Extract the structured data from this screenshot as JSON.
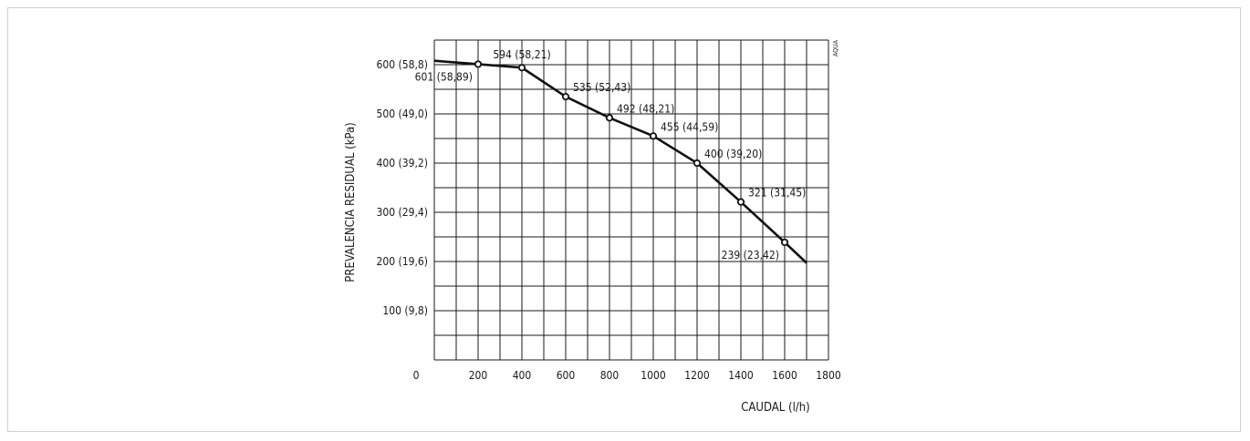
{
  "chart_data": {
    "type": "line",
    "title": "",
    "xlabel": "CAUDAL (l/h)",
    "ylabel": "PREVALENCIA RESIDUAL (kPa)",
    "corner_label": "AQUA",
    "xlim": [
      0,
      1800
    ],
    "ylim": [
      0,
      650
    ],
    "grid": true,
    "x_ticks": [
      {
        "value": 0,
        "label": "0"
      },
      {
        "value": 200,
        "label": "200"
      },
      {
        "value": 400,
        "label": "400"
      },
      {
        "value": 600,
        "label": "600"
      },
      {
        "value": 800,
        "label": "800"
      },
      {
        "value": 1000,
        "label": "1000"
      },
      {
        "value": 1200,
        "label": "1200"
      },
      {
        "value": 1400,
        "label": "1400"
      },
      {
        "value": 1600,
        "label": "1600"
      },
      {
        "value": 1800,
        "label": "1800"
      }
    ],
    "y_ticks": [
      {
        "value": 100,
        "label": "100 (9,8)"
      },
      {
        "value": 200,
        "label": "200 (19,6)"
      },
      {
        "value": 300,
        "label": "300 (29,4)"
      },
      {
        "value": 400,
        "label": "400 (39,2)"
      },
      {
        "value": 500,
        "label": "500 (49,0)"
      },
      {
        "value": 600,
        "label": "600 (58,8)"
      }
    ],
    "series": [
      {
        "x": [
          0,
          200,
          400,
          600,
          800,
          1000,
          1200,
          1400,
          1600,
          1700
        ],
        "y": [
          608,
          601,
          594,
          535,
          492,
          455,
          400,
          321,
          239,
          197
        ]
      }
    ],
    "markers": [
      {
        "x": 200,
        "y": 601,
        "label": "601 (58,89)",
        "pos": "below-left"
      },
      {
        "x": 400,
        "y": 594,
        "label": "594 (58,21)",
        "pos": "above"
      },
      {
        "x": 600,
        "y": 535,
        "label": "535 (52,43)",
        "pos": "above-right"
      },
      {
        "x": 800,
        "y": 492,
        "label": "492 (48,21)",
        "pos": "above-right"
      },
      {
        "x": 1000,
        "y": 455,
        "label": "455 (44,59)",
        "pos": "above-right"
      },
      {
        "x": 1200,
        "y": 400,
        "label": "400 (39,20)",
        "pos": "above-right"
      },
      {
        "x": 1400,
        "y": 321,
        "label": "321 (31,45)",
        "pos": "above-right"
      },
      {
        "x": 1600,
        "y": 239,
        "label": "239 (23,42)",
        "pos": "below-left"
      }
    ]
  }
}
